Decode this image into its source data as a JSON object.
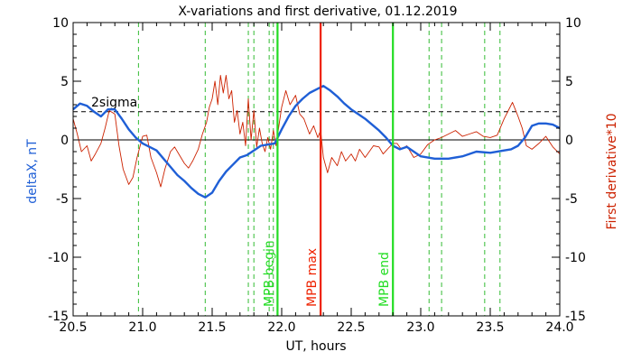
{
  "chart_data": {
    "type": "line",
    "title": "X-variations and first derivative, 01.12.2019",
    "xlabel": "UT, hours",
    "ylabel_left": "deltaX, nT",
    "ylabel_right": "First derivative*10",
    "xlim": [
      20.5,
      24.0
    ],
    "ylim": [
      -15,
      10
    ],
    "x_ticks": [
      "20.5",
      "21.0",
      "21.5",
      "22.0",
      "22.5",
      "23.0",
      "23.5",
      "24.0"
    ],
    "x_tick_values": [
      20.5,
      21.0,
      21.5,
      22.0,
      22.5,
      23.0,
      23.5,
      24.0
    ],
    "y_ticks": [
      "10",
      "5",
      "0",
      "-5",
      "-10",
      "-15"
    ],
    "y_tick_values": [
      10,
      5,
      0,
      -5,
      -10,
      -15
    ],
    "colors": {
      "deltaX": "#1f5fd6",
      "derivative": "#cc2200",
      "mpb": "#22dd22",
      "mpb_max": "#ee2200",
      "dashed_green": "#33bb33",
      "axes": "#000000"
    },
    "reference_lines": [
      {
        "label": "2sigma",
        "y": 2.4,
        "style": "dashed"
      },
      {
        "label": "",
        "y": 0,
        "style": "solid"
      }
    ],
    "vertical_markers": [
      {
        "x": 21.97,
        "label": "MPB begin",
        "color": "#22dd22"
      },
      {
        "x": 22.28,
        "label": "MPB max",
        "color": "#ee2200"
      },
      {
        "x": 22.8,
        "label": "MPB end",
        "color": "#22dd22"
      }
    ],
    "dashed_vertical_lines": [
      20.97,
      21.45,
      21.76,
      21.8,
      21.91,
      21.94,
      23.06,
      23.15,
      23.46,
      23.57
    ],
    "series": [
      {
        "key": "deltaX",
        "axis": "left",
        "x": [
          20.5,
          20.55,
          20.6,
          20.65,
          20.7,
          20.75,
          20.8,
          20.85,
          20.9,
          20.95,
          21.0,
          21.05,
          21.1,
          21.15,
          21.2,
          21.25,
          21.3,
          21.35,
          21.4,
          21.45,
          21.5,
          21.55,
          21.6,
          21.65,
          21.7,
          21.75,
          21.8,
          21.85,
          21.9,
          21.95,
          22.0,
          22.05,
          22.1,
          22.15,
          22.2,
          22.25,
          22.3,
          22.35,
          22.4,
          22.45,
          22.5,
          22.55,
          22.6,
          22.65,
          22.7,
          22.75,
          22.8,
          22.85,
          22.9,
          22.95,
          23.0,
          23.1,
          23.2,
          23.3,
          23.4,
          23.5,
          23.6,
          23.65,
          23.7,
          23.75,
          23.8,
          23.85,
          23.9,
          23.95,
          24.0
        ],
        "y": [
          2.6,
          3.1,
          2.9,
          2.4,
          2.0,
          2.6,
          2.6,
          1.8,
          0.9,
          0.2,
          -0.3,
          -0.6,
          -0.9,
          -1.6,
          -2.3,
          -3.0,
          -3.5,
          -4.1,
          -4.6,
          -4.9,
          -4.5,
          -3.5,
          -2.7,
          -2.1,
          -1.5,
          -1.3,
          -0.9,
          -0.5,
          -0.4,
          -0.3,
          0.9,
          2.0,
          2.9,
          3.5,
          4.0,
          4.3,
          4.6,
          4.2,
          3.7,
          3.1,
          2.6,
          2.2,
          1.8,
          1.3,
          0.8,
          0.2,
          -0.5,
          -0.8,
          -0.6,
          -1.0,
          -1.4,
          -1.6,
          -1.6,
          -1.4,
          -1.0,
          -1.1,
          -0.9,
          -0.8,
          -0.5,
          0.2,
          1.2,
          1.4,
          1.4,
          1.3,
          1.0
        ]
      },
      {
        "key": "derivative",
        "axis": "right",
        "x": [
          20.5,
          20.53,
          20.56,
          20.6,
          20.63,
          20.66,
          20.7,
          20.73,
          20.76,
          20.8,
          20.83,
          20.86,
          20.9,
          20.93,
          20.96,
          21.0,
          21.03,
          21.06,
          21.1,
          21.13,
          21.16,
          21.2,
          21.23,
          21.26,
          21.3,
          21.33,
          21.36,
          21.4,
          21.43,
          21.46,
          21.48,
          21.5,
          21.52,
          21.54,
          21.56,
          21.58,
          21.6,
          21.62,
          21.64,
          21.66,
          21.68,
          21.7,
          21.72,
          21.74,
          21.76,
          21.78,
          21.8,
          21.82,
          21.84,
          21.86,
          21.88,
          21.9,
          21.92,
          21.94,
          21.96,
          21.98,
          22.0,
          22.03,
          22.06,
          22.1,
          22.13,
          22.16,
          22.2,
          22.23,
          22.26,
          22.28,
          22.3,
          22.33,
          22.36,
          22.4,
          22.43,
          22.46,
          22.5,
          22.53,
          22.56,
          22.6,
          22.63,
          22.66,
          22.7,
          22.73,
          22.76,
          22.8,
          22.83,
          22.86,
          22.9,
          22.95,
          23.0,
          23.05,
          23.1,
          23.15,
          23.2,
          23.25,
          23.3,
          23.35,
          23.4,
          23.45,
          23.5,
          23.55,
          23.6,
          23.63,
          23.66,
          23.7,
          23.73,
          23.76,
          23.8,
          23.85,
          23.9,
          23.95,
          24.0
        ],
        "y": [
          1.8,
          0.5,
          -1.0,
          -0.5,
          -1.8,
          -1.2,
          -0.3,
          1.0,
          2.5,
          2.2,
          -0.5,
          -2.5,
          -3.8,
          -3.2,
          -1.5,
          0.3,
          0.4,
          -1.5,
          -2.8,
          -4.0,
          -2.5,
          -1.0,
          -0.6,
          -1.2,
          -2.0,
          -2.4,
          -1.8,
          -0.8,
          0.5,
          1.5,
          2.8,
          3.5,
          5.0,
          3.0,
          5.5,
          4.0,
          5.5,
          3.5,
          4.2,
          1.5,
          2.5,
          0.5,
          1.5,
          -0.5,
          3.5,
          0.0,
          2.5,
          -0.6,
          1.0,
          -0.3,
          -1.0,
          0.2,
          -0.8,
          0.8,
          -0.5,
          1.2,
          2.8,
          4.2,
          3.0,
          3.8,
          2.2,
          1.8,
          0.5,
          1.2,
          0.2,
          0.8,
          -1.5,
          -2.8,
          -1.5,
          -2.2,
          -1.0,
          -1.8,
          -1.2,
          -1.8,
          -0.8,
          -1.5,
          -1.0,
          -0.5,
          -0.6,
          -1.2,
          -0.8,
          -0.3,
          -0.3,
          -0.8,
          -0.5,
          -1.5,
          -1.2,
          -0.4,
          0.0,
          0.2,
          0.5,
          0.8,
          0.3,
          0.5,
          0.7,
          0.3,
          0.2,
          0.4,
          1.8,
          2.5,
          3.2,
          2.0,
          1.0,
          -0.5,
          -0.8,
          -0.3,
          0.3,
          -0.6,
          -1.2
        ]
      }
    ]
  }
}
